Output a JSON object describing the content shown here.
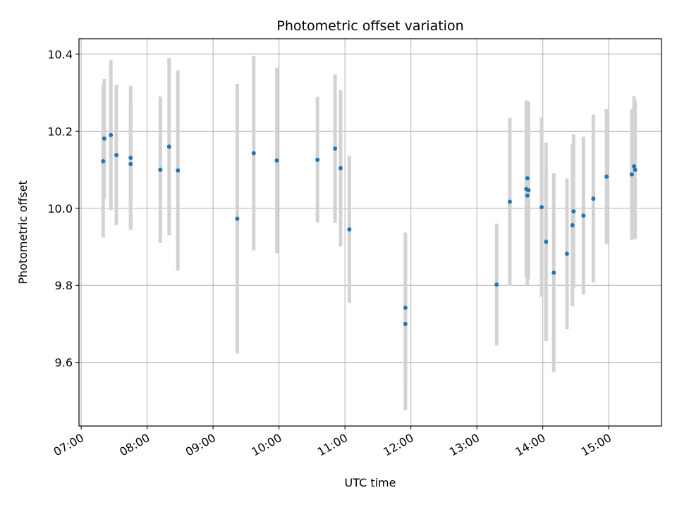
{
  "chart_data": {
    "type": "scatter",
    "title": "Photometric offset variation",
    "xlabel": "UTC time",
    "ylabel": "Photometric offset",
    "grid": true,
    "xlim": [
      "06:58",
      "15:48"
    ],
    "ylim": [
      9.435,
      10.44
    ],
    "x_ticks": [
      "07:00",
      "08:00",
      "09:00",
      "10:00",
      "11:00",
      "12:00",
      "13:00",
      "14:00",
      "15:00"
    ],
    "y_ticks": [
      "9.6",
      "9.8",
      "10.0",
      "10.2",
      "10.4"
    ],
    "colors": {
      "marker": "#1f77b4",
      "errorbar": "#d3d3d3",
      "grid": "#b0b0b0"
    },
    "points": [
      {
        "t": "07:20",
        "y": 10.122,
        "err": 0.198
      },
      {
        "t": "07:21",
        "y": 10.181,
        "err": 0.155
      },
      {
        "t": "07:27",
        "y": 10.19,
        "err": 0.195
      },
      {
        "t": "07:32",
        "y": 10.138,
        "err": 0.182
      },
      {
        "t": "07:45",
        "y": 10.131,
        "err": 0.187
      },
      {
        "t": "07:45",
        "y": 10.115,
        "err": 0.165
      },
      {
        "t": "08:12",
        "y": 10.1,
        "err": 0.19
      },
      {
        "t": "08:20",
        "y": 10.16,
        "err": 0.23
      },
      {
        "t": "08:28",
        "y": 10.098,
        "err": 0.26
      },
      {
        "t": "09:22",
        "y": 9.973,
        "err": 0.35
      },
      {
        "t": "09:37",
        "y": 10.143,
        "err": 0.252
      },
      {
        "t": "09:58",
        "y": 10.124,
        "err": 0.24
      },
      {
        "t": "10:35",
        "y": 10.126,
        "err": 0.163
      },
      {
        "t": "10:51",
        "y": 10.155,
        "err": 0.193
      },
      {
        "t": "10:56",
        "y": 10.104,
        "err": 0.203
      },
      {
        "t": "11:04",
        "y": 9.945,
        "err": 0.19
      },
      {
        "t": "11:55",
        "y": 9.742,
        "err": 0.195
      },
      {
        "t": "11:55",
        "y": 9.7,
        "err": 0.224
      },
      {
        "t": "13:18",
        "y": 9.802,
        "err": 0.158
      },
      {
        "t": "13:30",
        "y": 10.017,
        "err": 0.218
      },
      {
        "t": "13:45",
        "y": 10.05,
        "err": 0.23
      },
      {
        "t": "13:46",
        "y": 10.078,
        "err": 0.2
      },
      {
        "t": "13:46",
        "y": 10.033,
        "err": 0.233
      },
      {
        "t": "13:47",
        "y": 10.047,
        "err": 0.23
      },
      {
        "t": "13:59",
        "y": 10.003,
        "err": 0.233
      },
      {
        "t": "14:03",
        "y": 9.913,
        "err": 0.257
      },
      {
        "t": "14:10",
        "y": 9.833,
        "err": 0.258
      },
      {
        "t": "14:22",
        "y": 9.882,
        "err": 0.195
      },
      {
        "t": "14:27",
        "y": 9.956,
        "err": 0.21
      },
      {
        "t": "14:28",
        "y": 9.992,
        "err": 0.2
      },
      {
        "t": "14:37",
        "y": 9.981,
        "err": 0.205
      },
      {
        "t": "14:46",
        "y": 10.025,
        "err": 0.218
      },
      {
        "t": "14:58",
        "y": 10.082,
        "err": 0.175
      },
      {
        "t": "15:21",
        "y": 10.088,
        "err": 0.17
      },
      {
        "t": "15:23",
        "y": 10.109,
        "err": 0.182
      },
      {
        "t": "15:24",
        "y": 10.1,
        "err": 0.18
      }
    ]
  }
}
